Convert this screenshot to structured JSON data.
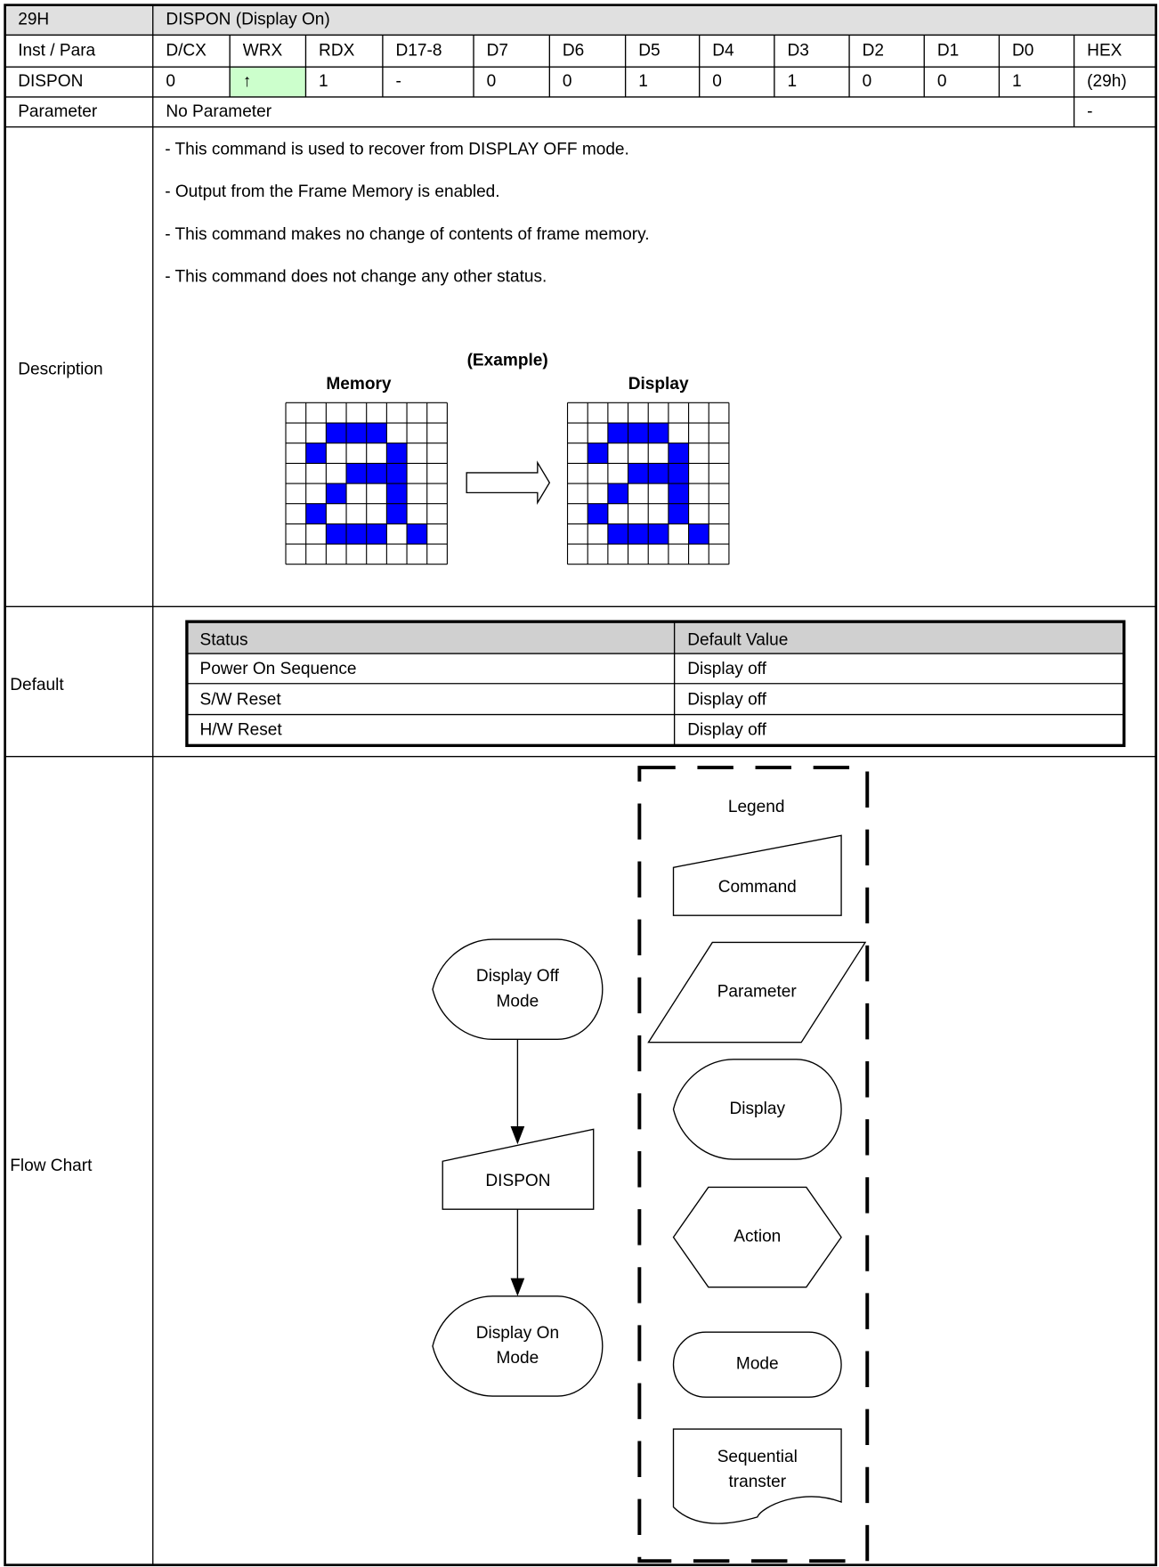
{
  "header": {
    "code": "29H",
    "title": "DISPON (Display On)"
  },
  "columns": [
    "Inst / Para",
    "D/CX",
    "WRX",
    "RDX",
    "D17-8",
    "D7",
    "D6",
    "D5",
    "D4",
    "D3",
    "D2",
    "D1",
    "D0",
    "HEX"
  ],
  "command": [
    "DISPON",
    "0",
    "↑",
    "1",
    "-",
    "0",
    "0",
    "1",
    "0",
    "1",
    "0",
    "0",
    "1",
    "(29h)"
  ],
  "parameter": {
    "label": "Parameter",
    "value": "No Parameter",
    "hex": "-"
  },
  "description": {
    "label": "Description",
    "lines": [
      "- This command is used to recover from DISPLAY OFF mode.",
      "- Output from the Frame Memory is enabled.",
      "- This command makes no change of contents of frame memory.",
      "- This command does not change any other status."
    ],
    "example": {
      "title": "(Example)",
      "memory": "Memory",
      "display": "Display"
    }
  },
  "default": {
    "label": "Default",
    "headers": [
      "Status",
      "Default Value"
    ],
    "rows": [
      [
        "Power On Sequence",
        "Display off"
      ],
      [
        "S/W Reset",
        "Display off"
      ],
      [
        "H/W Reset",
        "Display off"
      ]
    ]
  },
  "flow_chart": {
    "label": "Flow Chart",
    "nodes": [
      {
        "lines": [
          "Display Off",
          "Mode"
        ]
      },
      {
        "lines": [
          "DISPON"
        ]
      },
      {
        "lines": [
          "Display On",
          "Mode"
        ]
      }
    ],
    "legend": {
      "title": "Legend",
      "items": [
        {
          "lines": [
            "Command"
          ]
        },
        {
          "lines": [
            "Parameter"
          ]
        },
        {
          "lines": [
            "Display"
          ]
        },
        {
          "lines": [
            "Action"
          ]
        },
        {
          "lines": [
            "Mode"
          ]
        },
        {
          "lines": [
            "Sequential",
            "transter"
          ]
        }
      ]
    }
  }
}
